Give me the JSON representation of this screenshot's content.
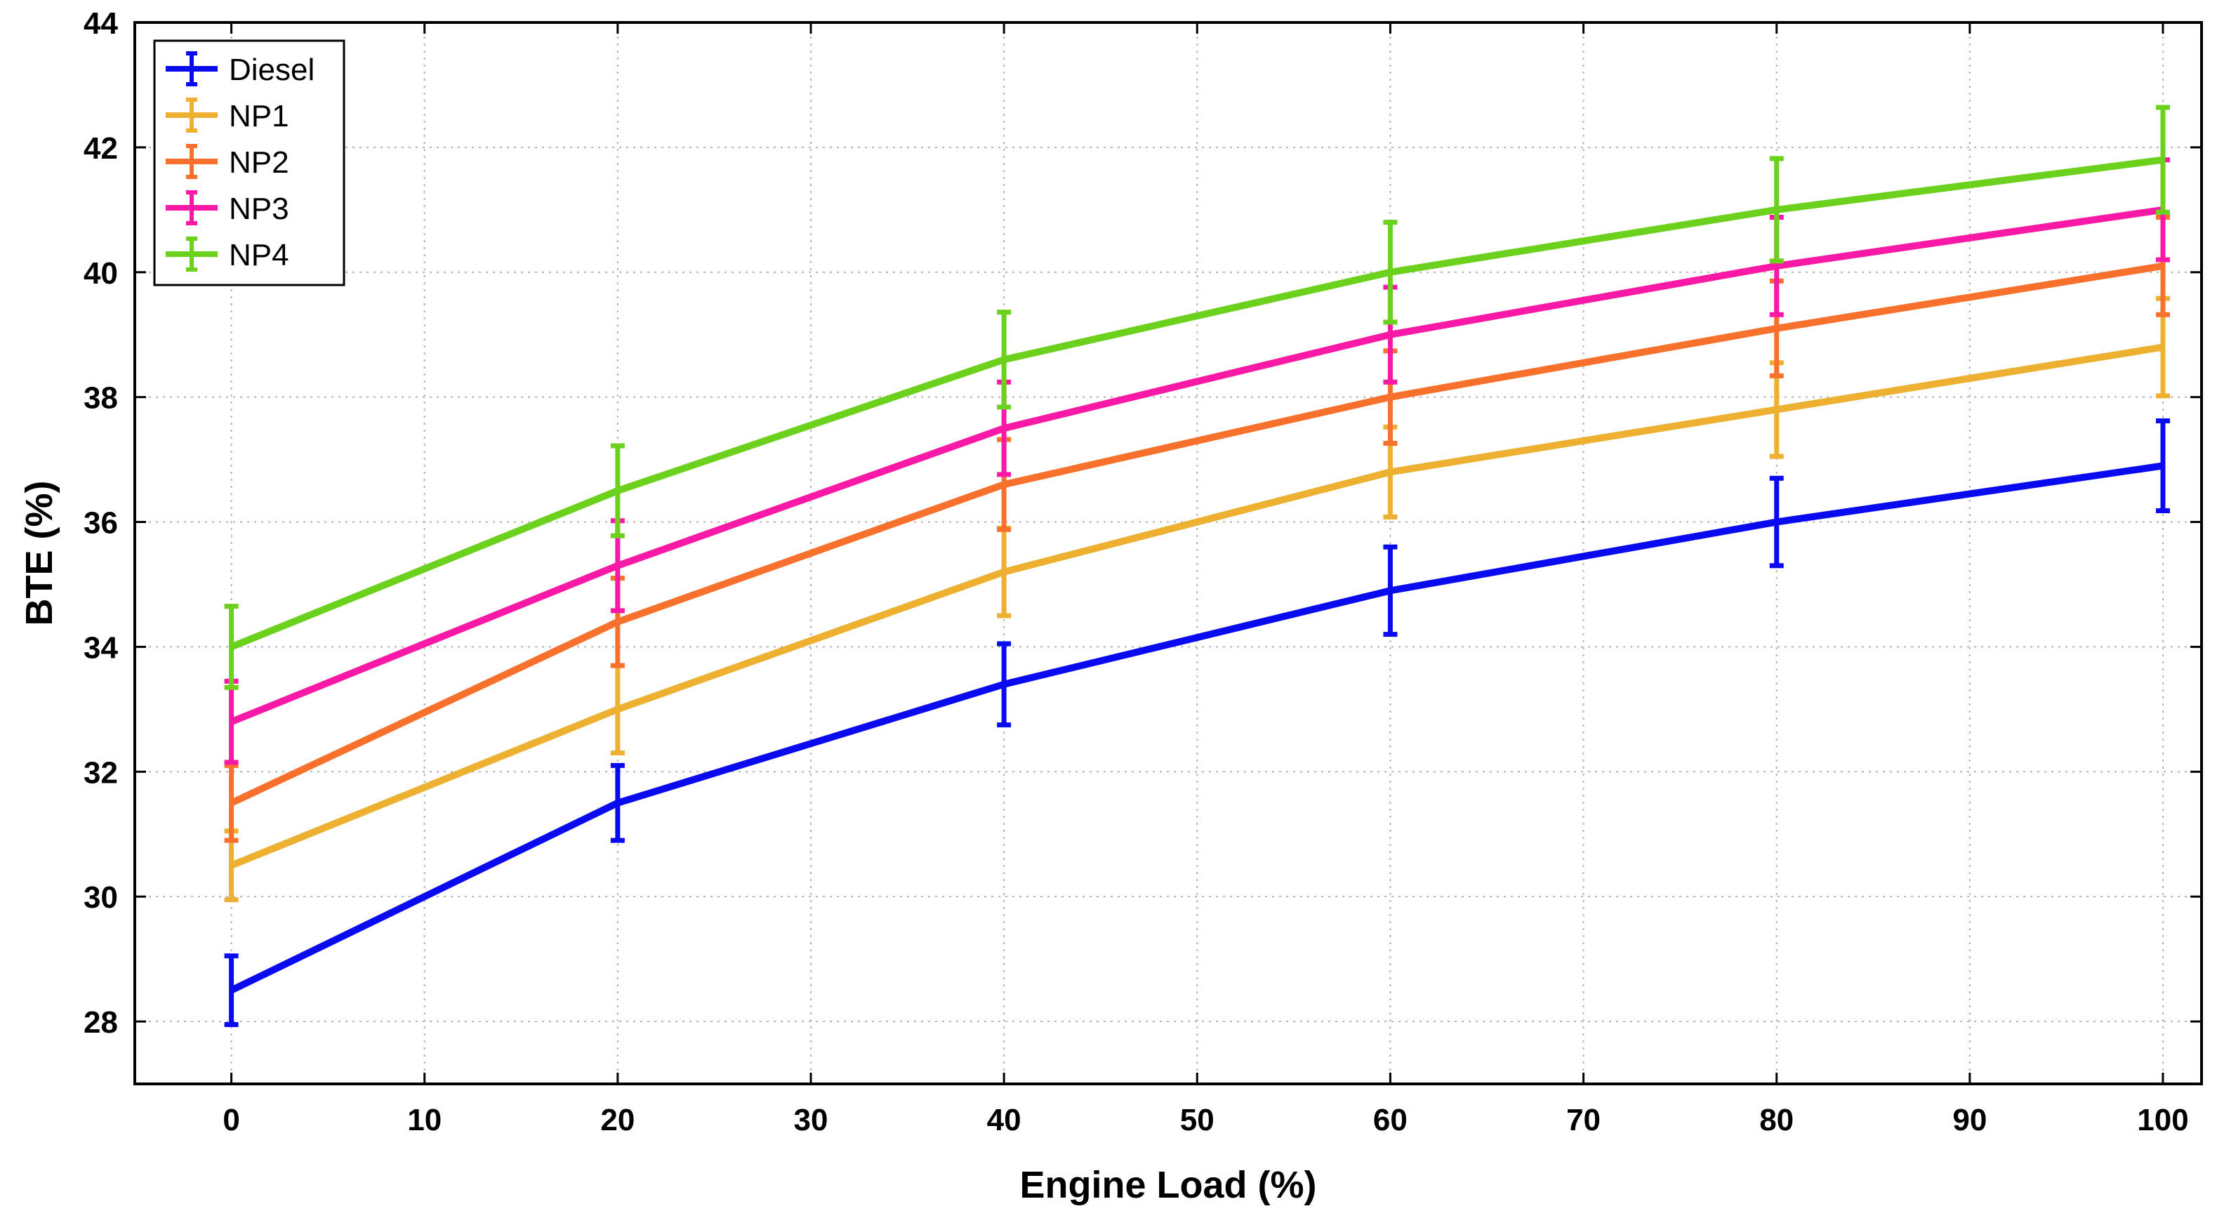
{
  "chart_data": {
    "type": "line",
    "xlabel": "Engine Load (%)",
    "ylabel": "BTE (%)",
    "xlim": [
      -5,
      102
    ],
    "ylim": [
      27,
      44
    ],
    "xticks": [
      0,
      10,
      20,
      30,
      40,
      50,
      60,
      70,
      80,
      90,
      100
    ],
    "yticks": [
      28,
      30,
      32,
      34,
      36,
      38,
      40,
      42,
      44
    ],
    "grid": true,
    "legend_position": "top-left",
    "x": [
      0,
      20,
      40,
      60,
      80,
      100
    ],
    "series": [
      {
        "name": "Diesel",
        "color": "#0a0aef",
        "values": [
          28.5,
          31.5,
          33.4,
          34.9,
          36.0,
          36.9
        ],
        "error": [
          0.55,
          0.6,
          0.65,
          0.7,
          0.7,
          0.72
        ]
      },
      {
        "name": "NP1",
        "color": "#edb030",
        "values": [
          30.5,
          33.0,
          35.2,
          36.8,
          37.8,
          38.8
        ],
        "error": [
          0.55,
          0.7,
          0.7,
          0.72,
          0.75,
          0.78
        ]
      },
      {
        "name": "NP2",
        "color": "#f7702c",
        "values": [
          31.5,
          34.4,
          36.6,
          38.0,
          39.1,
          40.1
        ],
        "error": [
          0.6,
          0.7,
          0.72,
          0.74,
          0.76,
          0.78
        ]
      },
      {
        "name": "NP3",
        "color": "#f81aa6",
        "values": [
          32.8,
          35.3,
          37.5,
          39.0,
          40.1,
          41.0
        ],
        "error": [
          0.65,
          0.72,
          0.74,
          0.76,
          0.78,
          0.8
        ]
      },
      {
        "name": "NP4",
        "color": "#6cd11d",
        "values": [
          34.0,
          36.5,
          38.6,
          40.0,
          41.0,
          41.8
        ],
        "error": [
          0.65,
          0.72,
          0.76,
          0.8,
          0.82,
          0.84
        ]
      }
    ]
  }
}
